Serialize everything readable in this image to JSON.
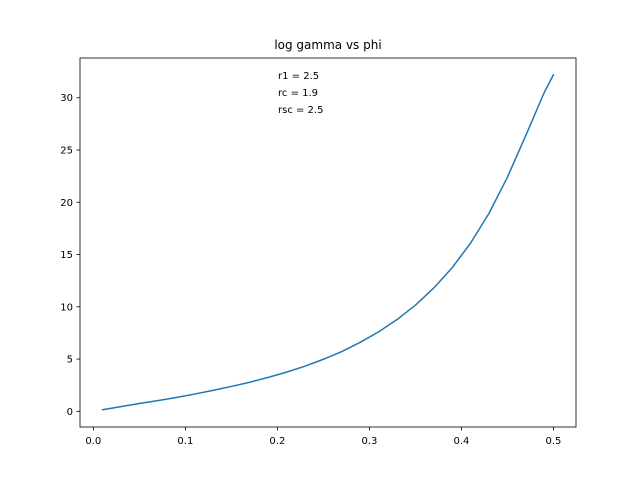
{
  "chart_data": {
    "type": "line",
    "title": "log gamma vs phi",
    "xlabel": "",
    "ylabel": "",
    "xlim": [
      -0.0145,
      0.5245
    ],
    "ylim": [
      -1.5,
      33.8
    ],
    "xticks": [
      0.0,
      0.1,
      0.2,
      0.3,
      0.4,
      0.5
    ],
    "xtick_labels": [
      "0.0",
      "0.1",
      "0.2",
      "0.3",
      "0.4",
      "0.5"
    ],
    "yticks": [
      0,
      5,
      10,
      15,
      20,
      25,
      30
    ],
    "ytick_labels": [
      "0",
      "5",
      "10",
      "15",
      "20",
      "25",
      "30"
    ],
    "grid": false,
    "annotations": [
      "r1 = 2.5",
      "rc = 1.9",
      "rsc = 2.5"
    ],
    "series": [
      {
        "color": "#1f77b4",
        "x": [
          0.01,
          0.03,
          0.05,
          0.07,
          0.09,
          0.11,
          0.13,
          0.15,
          0.17,
          0.19,
          0.21,
          0.23,
          0.25,
          0.27,
          0.29,
          0.31,
          0.33,
          0.35,
          0.37,
          0.39,
          0.41,
          0.43,
          0.45,
          0.47,
          0.49,
          0.5
        ],
        "y": [
          0.15,
          0.45,
          0.75,
          1.02,
          1.32,
          1.65,
          2.0,
          2.38,
          2.78,
          3.25,
          3.75,
          4.32,
          4.98,
          5.72,
          6.6,
          7.6,
          8.78,
          10.15,
          11.8,
          13.75,
          16.1,
          18.95,
          22.4,
          26.4,
          30.5,
          32.2
        ]
      }
    ]
  }
}
